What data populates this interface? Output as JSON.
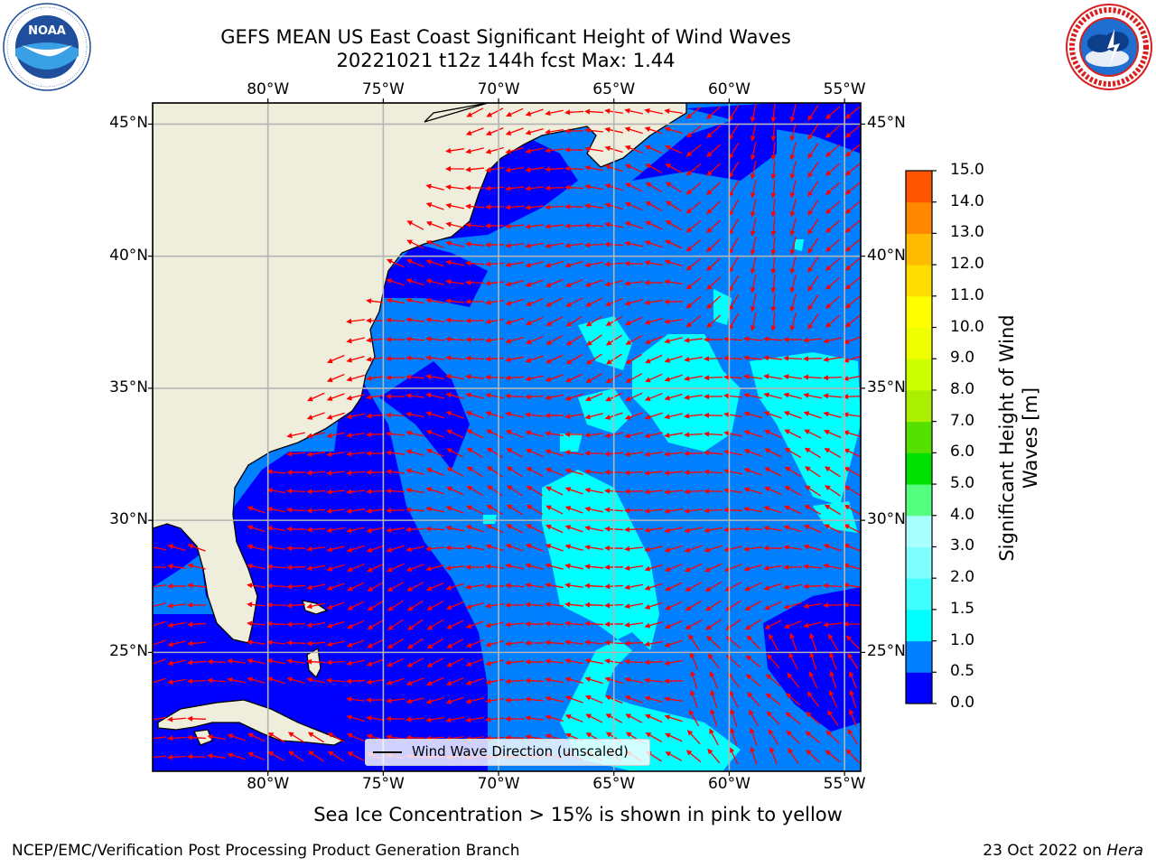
{
  "header": {
    "title_line1": "GEFS MEAN US East Coast Significant Height of Wind Waves",
    "title_line2": "20221021 t12z 144h fcst   Max: 1.44"
  },
  "logos": {
    "left": {
      "name": "NOAA",
      "ring_text": "NATIONAL OCEANIC AND ATMOSPHERIC ADMINISTRATION · U.S. DEPARTMENT OF COMMERCE",
      "color": "#1f4e9c"
    },
    "right": {
      "name": "NATIONAL WEATHER SERVICE",
      "color": "#d81e1e"
    }
  },
  "map": {
    "lon_labels": [
      "80°W",
      "75°W",
      "70°W",
      "65°W",
      "60°W",
      "55°W"
    ],
    "lat_labels": [
      "45°N",
      "40°N",
      "35°N",
      "30°N",
      "25°N"
    ],
    "lon_values": [
      -80,
      -75,
      -70,
      -65,
      -60,
      -55
    ],
    "lat_values": [
      45,
      40,
      35,
      30,
      25
    ],
    "extent": {
      "lon_min": -85,
      "lon_max": -54.3,
      "lat_min": 20.5,
      "lat_max": 45.8
    },
    "land_color": "#efeedc",
    "arrow_color": "#ff0000",
    "legend_label": "Wind Wave Direction (unscaled)"
  },
  "colorbar": {
    "label": "Significant Height of Wind Waves [m]",
    "ticks": [
      "0.0",
      "0.5",
      "1.0",
      "1.5",
      "2.0",
      "3.0",
      "4.0",
      "5.0",
      "6.0",
      "7.0",
      "8.0",
      "9.0",
      "10.0",
      "11.0",
      "12.0",
      "13.0",
      "14.0",
      "15.0"
    ],
    "colors": [
      "#0000ff",
      "#0080ff",
      "#00ffff",
      "#40ffff",
      "#80ffff",
      "#aaffff",
      "#55ff80",
      "#00e000",
      "#55e000",
      "#aaee00",
      "#ccff00",
      "#eeff00",
      "#ffff00",
      "#ffdd00",
      "#ffbb00",
      "#ff8800",
      "#ff5500",
      "#ff2000",
      "#ff0000"
    ]
  },
  "chart_data": {
    "type": "map",
    "variable": "Significant Height of Wind Waves [m]",
    "run": "20221021 t12z",
    "forecast_hour": "144h",
    "max_value": 1.44
  },
  "footer": {
    "ice_note": "Sea Ice Concentration > 15% is shown in pink to yellow",
    "credit": "NCEP/EMC/Verification Post Processing Product Generation Branch",
    "date": "23 Oct 2022 on ",
    "host": "Hera"
  }
}
